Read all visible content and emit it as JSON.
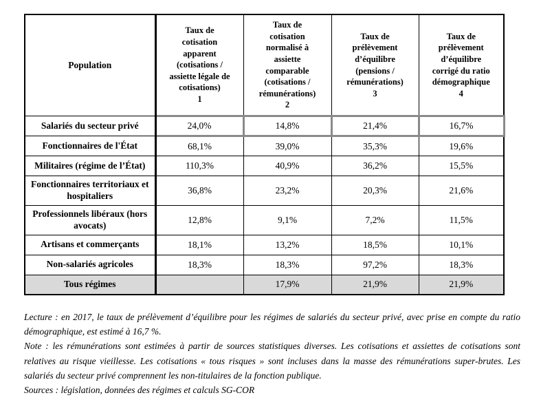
{
  "colors": {
    "table_border": "#000000",
    "highlight_border": "#8a8a8a",
    "total_row_bg": "#d9d9d9"
  },
  "table": {
    "columns": [
      {
        "label": "Population"
      },
      {
        "label": "Taux de\ncotisation\napparent\n(cotisations /\nassiette légale de\ncotisations)\n1"
      },
      {
        "label": "Taux de\ncotisation\nnormalisé à\nassiette\ncomparable\n(cotisations /\nrémunérations)\n2"
      },
      {
        "label": "Taux de\nprélèvement\nd’équilibre\n(pensions /\nrémunérations)\n3"
      },
      {
        "label": "Taux de\nprélèvement\nd’équilibre\ncorrigé du ratio\ndémographique\n4"
      }
    ],
    "rows": [
      {
        "population": "Salariés du secteur privé",
        "values": [
          "24,0%",
          "14,8%",
          "21,4%",
          "16,7%"
        ],
        "highlighted": true
      },
      {
        "population": "Fonctionnaires de l'État",
        "values": [
          "68,1%",
          "39,0%",
          "35,3%",
          "19,6%"
        ]
      },
      {
        "population": "Militaires (régime de l’État)",
        "values": [
          "110,3%",
          "40,9%",
          "36,2%",
          "15,5%"
        ]
      },
      {
        "population": "Fonctionnaires territoriaux et hospitaliers",
        "values": [
          "36,8%",
          "23,2%",
          "20,3%",
          "21,6%"
        ]
      },
      {
        "population": "Professionnels libéraux (hors avocats)",
        "values": [
          "12,8%",
          "9,1%",
          "7,2%",
          "11,5%"
        ]
      },
      {
        "population": "Artisans et commerçants",
        "values": [
          "18,1%",
          "13,2%",
          "18,5%",
          "10,1%"
        ]
      },
      {
        "population": "Non-salariés agricoles",
        "values": [
          "18,3%",
          "18,3%",
          "97,2%",
          "18,3%"
        ]
      },
      {
        "population": "Tous régimes",
        "values": [
          "",
          "17,9%",
          "21,9%",
          "21,9%"
        ],
        "total": true
      }
    ]
  },
  "notes": {
    "lecture": "Lecture : en 2017, le taux de prélèvement d’équilibre pour les régimes de salariés du secteur privé, avec prise en compte du ratio démographique, est estimé à 16,7 %.",
    "note": "Note : les rémunérations sont estimées à partir de sources statistiques diverses. Les cotisations et assiettes de cotisations sont relatives au risque vieillesse. Les cotisations « tous risques » sont incluses dans la masse des rémunérations super-brutes. Les salariés du secteur privé comprennent les non-titulaires de la fonction publique.",
    "sources": "Sources : législation, données des régimes et calculs SG-COR"
  }
}
